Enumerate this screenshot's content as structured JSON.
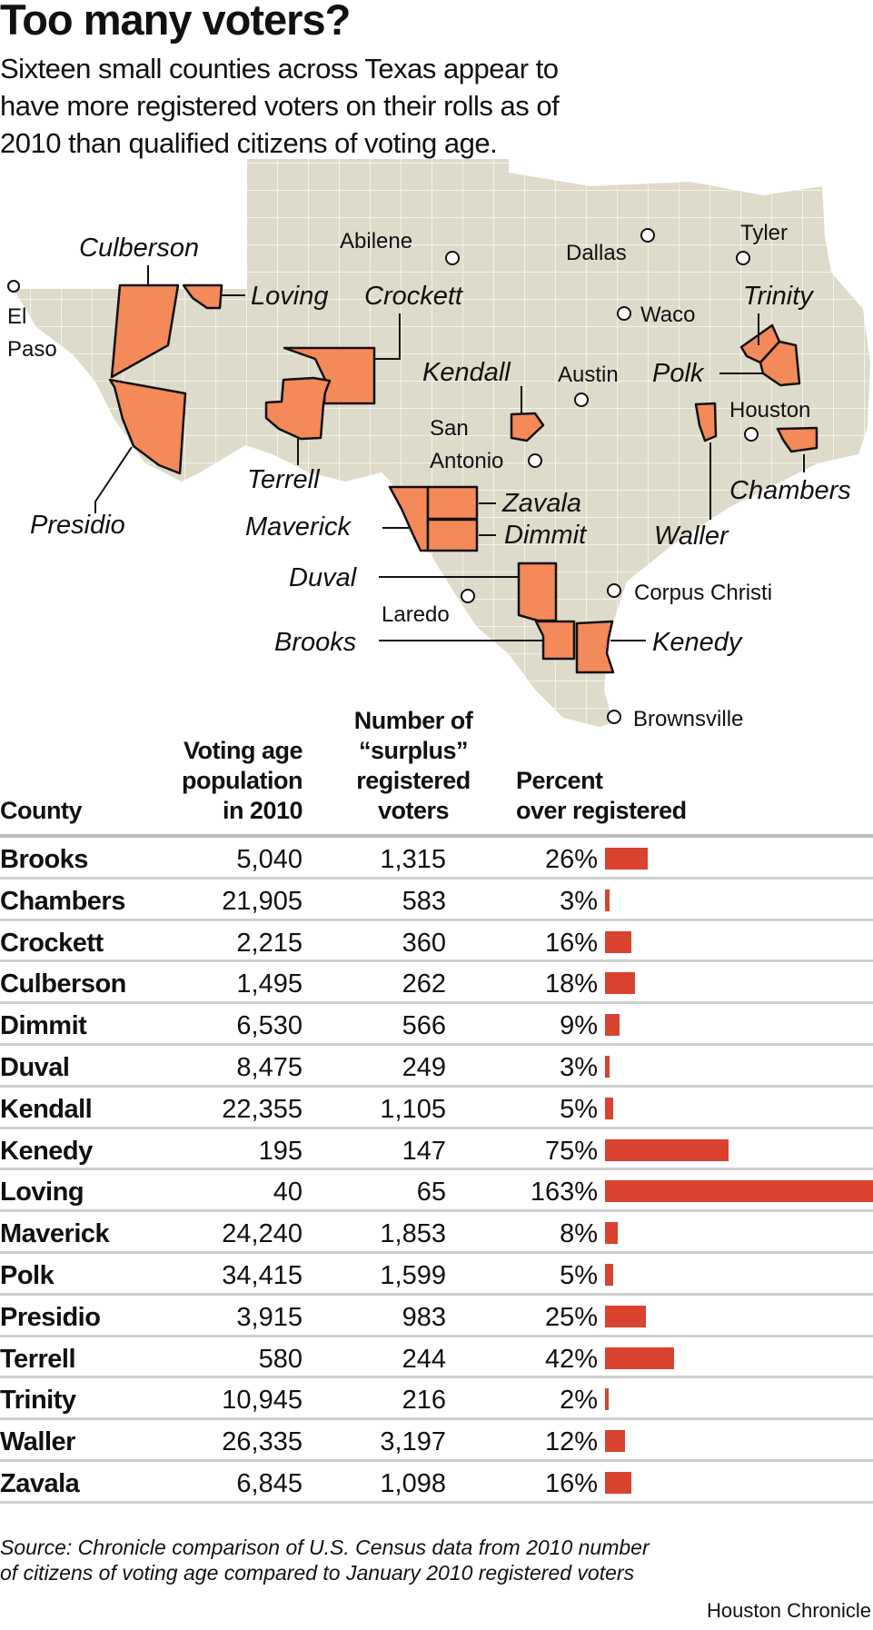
{
  "title": "Too many voters?",
  "subtitle_lines": [
    "Sixteen small counties across Texas appear to",
    "have more registered voters on their rolls as of",
    "2010 than qualified citizens of voting age."
  ],
  "colors": {
    "state_fill": "#dedbca",
    "highlight_county": "#f4895a",
    "bar": "#d9432f",
    "county_lines": "#f4f2ea"
  },
  "map": {
    "county_labels": [
      "Culberson",
      "Loving",
      "Crockett",
      "Presidio",
      "Terrell",
      "Kendall",
      "Maverick",
      "Zavala",
      "Dimmit",
      "Duval",
      "Brooks",
      "Kenedy",
      "Trinity",
      "Polk",
      "Waller",
      "Chambers"
    ],
    "cities": {
      "el": "El",
      "paso": "Paso",
      "abilene": "Abilene",
      "dallas": "Dallas",
      "tyler": "Tyler",
      "waco": "Waco",
      "austin": "Austin",
      "san": "San",
      "antonio": "Antonio",
      "houston": "Houston",
      "laredo": "Laredo",
      "corpus": "Corpus Christi",
      "brownsville": "Brownsville"
    }
  },
  "table": {
    "headers": {
      "county": "County",
      "vap": [
        "Voting age",
        "population",
        "in 2010"
      ],
      "surplus": [
        "Number of",
        "“surplus”",
        "registered",
        "voters"
      ],
      "percent": [
        "Percent",
        "over registered"
      ]
    }
  },
  "chart_data": {
    "type": "table",
    "columns": [
      "County",
      "Voting age population in 2010",
      "Number of “surplus” registered voters",
      "Percent over registered"
    ],
    "rows": [
      {
        "county": "Brooks",
        "vap": "5,040",
        "surplus": "1,315",
        "pct": 26
      },
      {
        "county": "Chambers",
        "vap": "21,905",
        "surplus": "583",
        "pct": 3
      },
      {
        "county": "Crockett",
        "vap": "2,215",
        "surplus": "360",
        "pct": 16
      },
      {
        "county": "Culberson",
        "vap": "1,495",
        "surplus": "262",
        "pct": 18
      },
      {
        "county": "Dimmit",
        "vap": "6,530",
        "surplus": "566",
        "pct": 9
      },
      {
        "county": "Duval",
        "vap": "8,475",
        "surplus": "249",
        "pct": 3
      },
      {
        "county": "Kendall",
        "vap": "22,355",
        "surplus": "1,105",
        "pct": 5
      },
      {
        "county": "Kenedy",
        "vap": "195",
        "surplus": "147",
        "pct": 75
      },
      {
        "county": "Loving",
        "vap": "40",
        "surplus": "65",
        "pct": 163
      },
      {
        "county": "Maverick",
        "vap": "24,240",
        "surplus": "1,853",
        "pct": 8
      },
      {
        "county": "Polk",
        "vap": "34,415",
        "surplus": "1,599",
        "pct": 5
      },
      {
        "county": "Presidio",
        "vap": "3,915",
        "surplus": "983",
        "pct": 25
      },
      {
        "county": "Terrell",
        "vap": "580",
        "surplus": "244",
        "pct": 42
      },
      {
        "county": "Trinity",
        "vap": "10,945",
        "surplus": "216",
        "pct": 2
      },
      {
        "county": "Waller",
        "vap": "26,335",
        "surplus": "3,197",
        "pct": 12
      },
      {
        "county": "Zavala",
        "vap": "6,845",
        "surplus": "1,098",
        "pct": 16
      }
    ],
    "bar_series": "Percent over registered"
  },
  "footer": {
    "source_lines": [
      "Source: Chronicle comparison of U.S. Census data from 2010 number",
      "of citizens of voting age compared to January 2010 registered voters"
    ],
    "credit": "Houston Chronicle"
  }
}
